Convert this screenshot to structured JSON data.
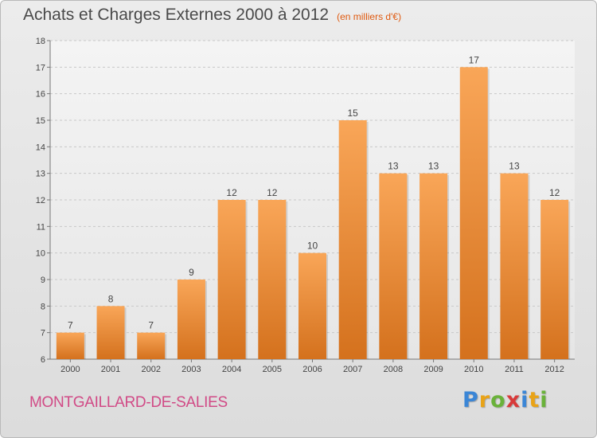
{
  "header": {
    "title": "Achats et Charges Externes 2000 à 2012",
    "unit": "(en milliers d'€)"
  },
  "footer": {
    "commune": "MONTGAILLARD-DE-SALIES",
    "logo": "Proxiti"
  },
  "colors": {
    "bar_top": "#f9a658",
    "bar_bottom": "#d4711d",
    "grid": "#c8c8c8"
  },
  "chart_data": {
    "type": "bar",
    "title": "Achats et Charges Externes 2000 à 2012",
    "subtitle": "(en milliers d'€)",
    "xlabel": "",
    "ylabel": "",
    "categories": [
      "2000",
      "2001",
      "2002",
      "2003",
      "2004",
      "2005",
      "2006",
      "2007",
      "2008",
      "2009",
      "2010",
      "2011",
      "2012"
    ],
    "values": [
      7,
      8,
      7,
      9,
      12,
      12,
      10,
      15,
      13,
      13,
      17,
      13,
      12
    ],
    "data_labels": [
      "7",
      "8",
      "7",
      "9",
      "12",
      "12",
      "10",
      "15",
      "13",
      "13",
      "17",
      "13",
      "12"
    ],
    "ylim": [
      6,
      18
    ],
    "yticks": [
      "6",
      "7",
      "8",
      "9",
      "10",
      "11",
      "12",
      "13",
      "14",
      "15",
      "16",
      "17",
      "18"
    ],
    "grid": true,
    "legend": "none"
  }
}
